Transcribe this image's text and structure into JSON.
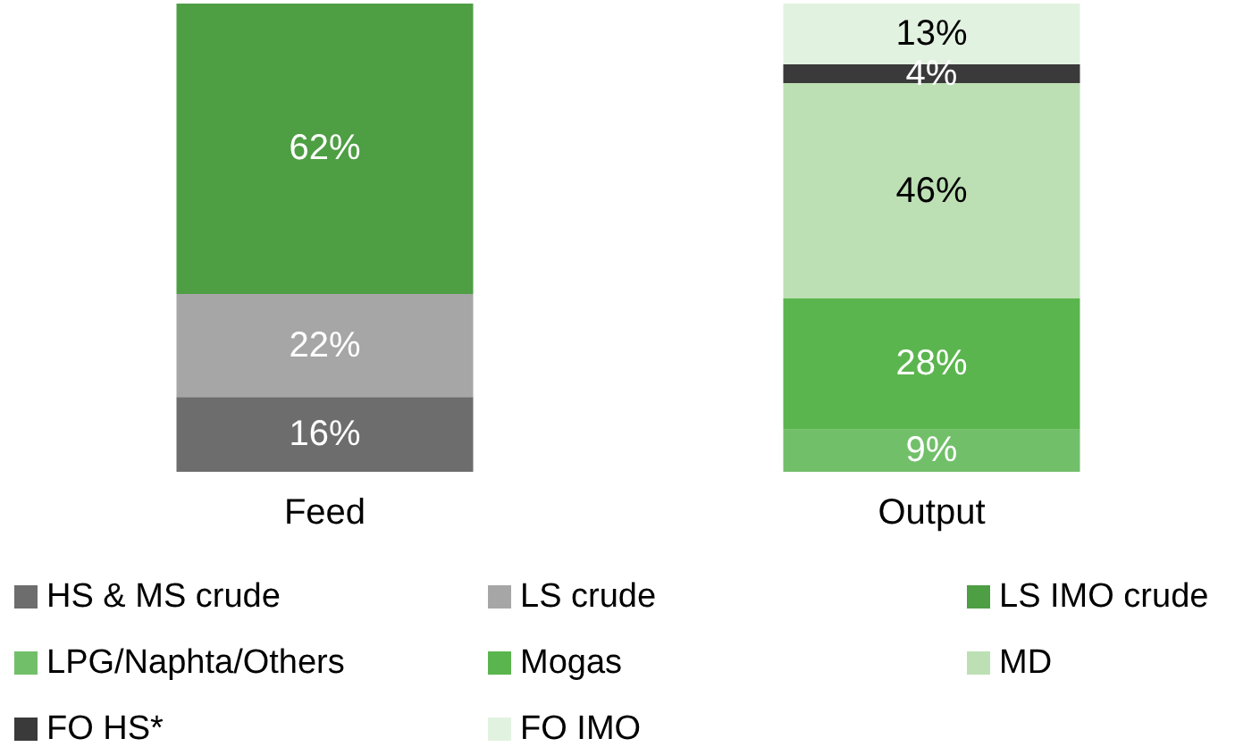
{
  "chart_data": {
    "type": "bar",
    "stacked": true,
    "categories": [
      "Feed",
      "Output"
    ],
    "series": [
      {
        "name": "HS & MS crude",
        "color": "#6d6d6d",
        "values": [
          16,
          null
        ],
        "value_labels": [
          "16%",
          null
        ]
      },
      {
        "name": "LS crude",
        "color": "#a6a6a6",
        "values": [
          22,
          null
        ],
        "value_labels": [
          "22%",
          null
        ]
      },
      {
        "name": "LS IMO crude",
        "color": "#4e9e44",
        "values": [
          62,
          null
        ],
        "value_labels": [
          "62%",
          null
        ]
      },
      {
        "name": "LPG/Naphta/Others",
        "color": "#72bf6a",
        "values": [
          null,
          9
        ],
        "value_labels": [
          null,
          "9%"
        ]
      },
      {
        "name": "Mogas",
        "color": "#5bb54e",
        "values": [
          null,
          28
        ],
        "value_labels": [
          null,
          "28%"
        ]
      },
      {
        "name": "MD",
        "color": "#bce0b4",
        "values": [
          null,
          46
        ],
        "value_labels": [
          null,
          "46%"
        ]
      },
      {
        "name": "FO HS*",
        "color": "#3a3a3a",
        "values": [
          null,
          4
        ],
        "value_labels": [
          null,
          "4%"
        ]
      },
      {
        "name": "FO IMO",
        "color": "#e2f2e0",
        "values": [
          null,
          13
        ],
        "value_labels": [
          null,
          "13%"
        ]
      }
    ],
    "legend": "bottom",
    "tick_labels": "x",
    "grid": false
  }
}
